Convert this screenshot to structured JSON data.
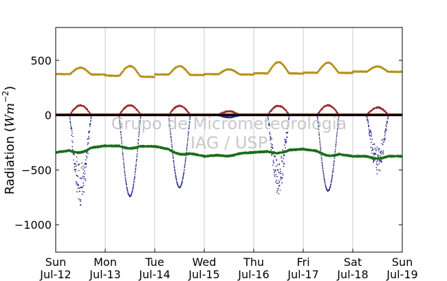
{
  "chart_data": {
    "type": "scatter",
    "ylabel_text": "Radiation (",
    "ylabel_math": "Wm",
    "ylabel_exp": "−2",
    "ylabel_close": ")",
    "ylim": [
      -1250,
      800
    ],
    "xlim": [
      0,
      7
    ],
    "yticks": [
      500,
      0,
      -500,
      -1000
    ],
    "ytick_labels": [
      "500",
      "0",
      "−500",
      "−1000"
    ],
    "xtick_days": [
      "Sun",
      "Mon",
      "Tue",
      "Wed",
      "Thu",
      "Fri",
      "Sat",
      "Sun"
    ],
    "xtick_dates": [
      "Jul-12",
      "Jul-13",
      "Jul-14",
      "Jul-15",
      "Jul-16",
      "Jul-17",
      "Jul-18",
      "Jul-19"
    ],
    "vertical_gridlines": true,
    "zero_line": 0,
    "watermark_lines": [
      "Grupo de Micrometeorologia",
      "IAG / USP"
    ],
    "series": [
      {
        "color": "#b8901a",
        "base": [
          375,
          362,
          372,
          375,
          382,
          388,
          398
        ],
        "peak": [
          435,
          455,
          450,
          420,
          485,
          480,
          445
        ],
        "night_end": [
          370,
          348,
          366,
          370,
          380,
          385,
          395
        ]
      },
      {
        "color": "#9e2a2a",
        "base": [
          0,
          0,
          0,
          0,
          0,
          0,
          0
        ],
        "peak": [
          90,
          90,
          85,
          35,
          85,
          90,
          70
        ]
      },
      {
        "color": "#2c2c8c",
        "base": [
          0,
          0,
          0,
          0,
          0,
          0,
          0
        ],
        "trough": [
          -790,
          -740,
          -660,
          -20,
          -700,
          -690,
          -520
        ]
      },
      {
        "color": "#1c6e1c",
        "base": [
          -340,
          -280,
          -285,
          -375,
          -340,
          -310,
          -375
        ],
        "day_bump": [
          30,
          20,
          25,
          15,
          20,
          25,
          20
        ]
      },
      {
        "color": "#000000",
        "constant": 0
      }
    ]
  }
}
